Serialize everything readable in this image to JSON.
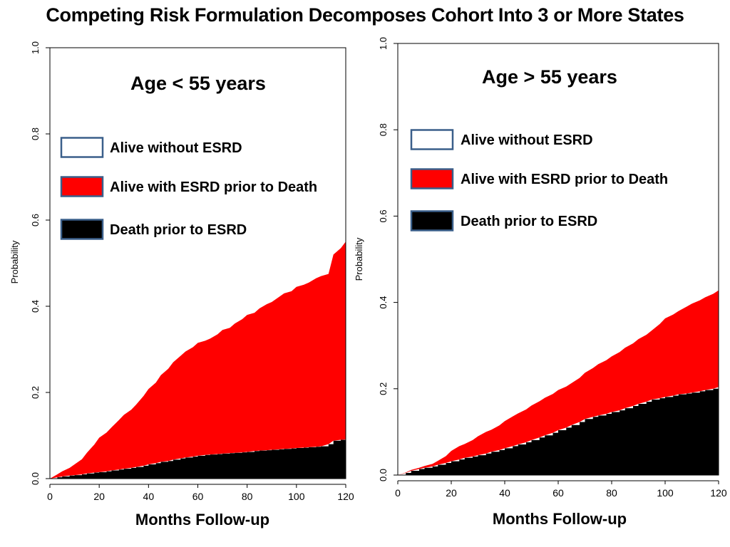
{
  "slide_title": "Competing Risk Formulation Decomposes Cohort Into 3 or More States",
  "colors": {
    "alive_without_esrd": "#ffffff",
    "alive_with_esrd": "#ff0000",
    "death_prior_to_esrd": "#000000",
    "legend_border": "#3a5f8a"
  },
  "chart_data": [
    {
      "type": "area",
      "subtitle": "Age < 55 years",
      "xlabel": "Months Follow-up",
      "ylabel": "Probability",
      "xlim": [
        0,
        120
      ],
      "ylim": [
        0,
        1
      ],
      "x_ticks": [
        "0",
        "20",
        "40",
        "60",
        "80",
        "100",
        "120"
      ],
      "y_ticks": [
        "0.0",
        "0.2",
        "0.4",
        "0.6",
        "0.8",
        "1.0"
      ],
      "legend": [
        "Alive without ESRD",
        "Alive with ESRD prior to Death",
        "Death prior to ESRD"
      ],
      "x": [
        0,
        3,
        5,
        8,
        10,
        13,
        15,
        18,
        20,
        23,
        25,
        28,
        30,
        33,
        35,
        38,
        40,
        43,
        45,
        48,
        50,
        53,
        55,
        58,
        60,
        63,
        65,
        68,
        70,
        73,
        75,
        78,
        80,
        83,
        85,
        88,
        90,
        93,
        95,
        98,
        100,
        103,
        105,
        108,
        110,
        113,
        115,
        118,
        120
      ],
      "series": [
        {
          "name": "Death prior to ESRD",
          "values": [
            0,
            0.003,
            0.005,
            0.007,
            0.008,
            0.01,
            0.012,
            0.014,
            0.015,
            0.017,
            0.019,
            0.021,
            0.023,
            0.025,
            0.027,
            0.03,
            0.033,
            0.036,
            0.039,
            0.041,
            0.044,
            0.047,
            0.049,
            0.051,
            0.053,
            0.055,
            0.056,
            0.057,
            0.058,
            0.059,
            0.06,
            0.061,
            0.062,
            0.064,
            0.065,
            0.066,
            0.067,
            0.068,
            0.069,
            0.07,
            0.071,
            0.072,
            0.073,
            0.074,
            0.075,
            0.08,
            0.088,
            0.09,
            0.091
          ]
        },
        {
          "name": "Alive with ESRD prior to Death",
          "values": [
            0,
            0.007,
            0.012,
            0.018,
            0.025,
            0.035,
            0.048,
            0.065,
            0.08,
            0.09,
            0.1,
            0.115,
            0.125,
            0.135,
            0.145,
            0.162,
            0.175,
            0.187,
            0.201,
            0.214,
            0.226,
            0.238,
            0.246,
            0.254,
            0.262,
            0.265,
            0.269,
            0.278,
            0.287,
            0.291,
            0.3,
            0.309,
            0.318,
            0.321,
            0.33,
            0.339,
            0.343,
            0.354,
            0.361,
            0.365,
            0.374,
            0.378,
            0.382,
            0.391,
            0.395,
            0.395,
            0.432,
            0.445,
            0.459
          ]
        }
      ]
    },
    {
      "type": "area",
      "subtitle": "Age > 55 years",
      "xlabel": "Months Follow-up",
      "ylabel": "Probability",
      "xlim": [
        0,
        120
      ],
      "ylim": [
        0,
        1
      ],
      "x_ticks": [
        "0",
        "20",
        "40",
        "60",
        "80",
        "100",
        "120"
      ],
      "y_ticks": [
        "0.0",
        "0.2",
        "0.4",
        "0.6",
        "0.8",
        "1.0"
      ],
      "legend": [
        "Alive without ESRD",
        "Alive with ESRD prior to Death",
        "Death prior to ESRD"
      ],
      "x": [
        0,
        3,
        5,
        8,
        10,
        13,
        15,
        18,
        20,
        23,
        25,
        28,
        30,
        33,
        35,
        38,
        40,
        43,
        45,
        48,
        50,
        53,
        55,
        58,
        60,
        63,
        65,
        68,
        70,
        73,
        75,
        78,
        80,
        83,
        85,
        88,
        90,
        93,
        95,
        98,
        100,
        103,
        105,
        108,
        110,
        113,
        115,
        118,
        120
      ],
      "series": [
        {
          "name": "Death prior to ESRD",
          "values": [
            0,
            0.005,
            0.01,
            0.014,
            0.017,
            0.02,
            0.024,
            0.028,
            0.032,
            0.036,
            0.04,
            0.043,
            0.046,
            0.05,
            0.054,
            0.058,
            0.062,
            0.067,
            0.071,
            0.076,
            0.081,
            0.087,
            0.092,
            0.098,
            0.104,
            0.11,
            0.116,
            0.123,
            0.13,
            0.135,
            0.138,
            0.142,
            0.146,
            0.15,
            0.155,
            0.16,
            0.165,
            0.17,
            0.175,
            0.178,
            0.181,
            0.184,
            0.187,
            0.189,
            0.191,
            0.194,
            0.197,
            0.2,
            0.204
          ]
        },
        {
          "name": "Alive with ESRD prior to Death",
          "values": [
            0,
            0.001,
            0.002,
            0.003,
            0.004,
            0.006,
            0.009,
            0.016,
            0.024,
            0.031,
            0.032,
            0.038,
            0.044,
            0.05,
            0.051,
            0.057,
            0.063,
            0.069,
            0.072,
            0.076,
            0.08,
            0.084,
            0.087,
            0.09,
            0.093,
            0.095,
            0.097,
            0.102,
            0.107,
            0.113,
            0.119,
            0.124,
            0.129,
            0.135,
            0.14,
            0.145,
            0.15,
            0.155,
            0.16,
            0.172,
            0.182,
            0.188,
            0.193,
            0.201,
            0.206,
            0.211,
            0.215,
            0.22,
            0.224
          ]
        }
      ]
    }
  ]
}
